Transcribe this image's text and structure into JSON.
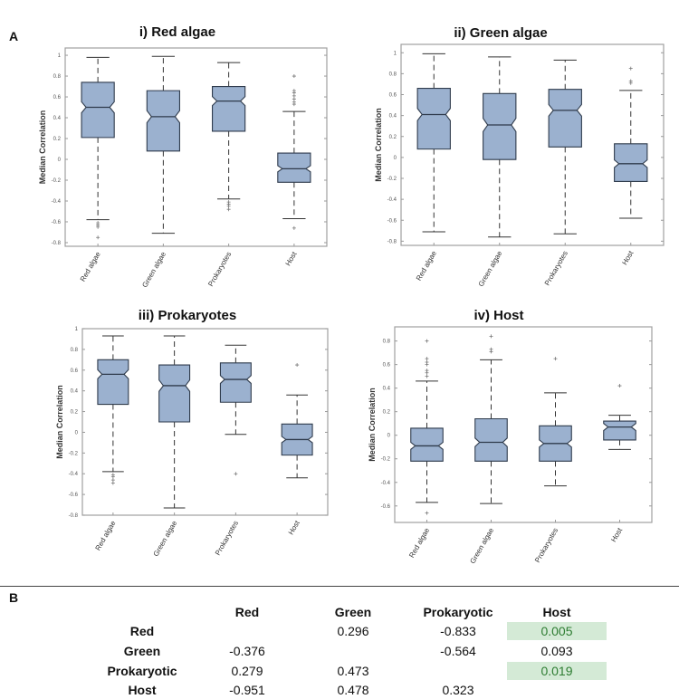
{
  "panel_labels": {
    "a": "A",
    "b": "B"
  },
  "chart_data": [
    {
      "type": "box",
      "title": "i) Red algae",
      "ylabel": "Median Correlation",
      "categories": [
        "Red algae",
        "Green algae",
        "Prokaryotes",
        "Host"
      ],
      "ylim": [
        -0.835,
        1.07
      ],
      "yticks": [
        1,
        0.8,
        0.6,
        0.4,
        0.2,
        0,
        -0.2,
        -0.4,
        -0.6,
        -0.8
      ],
      "boxes": [
        {
          "min": -0.58,
          "q1": 0.21,
          "median": 0.5,
          "q3": 0.74,
          "max": 0.98,
          "outliers": [
            -0.61,
            -0.63,
            -0.65,
            -0.75
          ]
        },
        {
          "min": -0.71,
          "q1": 0.08,
          "median": 0.41,
          "q3": 0.66,
          "max": 0.99,
          "outliers": []
        },
        {
          "min": -0.38,
          "q1": 0.27,
          "median": 0.56,
          "q3": 0.7,
          "max": 0.93,
          "outliers": [
            -0.41,
            -0.43,
            -0.45,
            -0.48
          ]
        },
        {
          "min": -0.57,
          "q1": -0.22,
          "median": -0.09,
          "q3": 0.06,
          "max": 0.46,
          "outliers": [
            0.53,
            0.55,
            0.58,
            0.61,
            0.64,
            0.66,
            0.8,
            -0.66
          ]
        }
      ],
      "grid": false
    },
    {
      "type": "box",
      "title": "ii) Green algae",
      "ylabel": "Median Correlation",
      "categories": [
        "Red algae",
        "Green algae",
        "Prokaryotes",
        "Host"
      ],
      "ylim": [
        -0.84,
        1.08
      ],
      "yticks": [
        1,
        0.8,
        0.6,
        0.4,
        0.2,
        0,
        -0.2,
        -0.4,
        -0.6,
        -0.8
      ],
      "boxes": [
        {
          "min": -0.71,
          "q1": 0.08,
          "median": 0.41,
          "q3": 0.66,
          "max": 0.99,
          "outliers": []
        },
        {
          "min": -0.76,
          "q1": -0.02,
          "median": 0.31,
          "q3": 0.61,
          "max": 0.96,
          "outliers": []
        },
        {
          "min": -0.73,
          "q1": 0.1,
          "median": 0.45,
          "q3": 0.65,
          "max": 0.93,
          "outliers": []
        },
        {
          "min": -0.58,
          "q1": -0.23,
          "median": -0.06,
          "q3": 0.13,
          "max": 0.64,
          "outliers": [
            0.71,
            0.73,
            0.85
          ]
        }
      ],
      "grid": false
    },
    {
      "type": "box",
      "title": "iii) Prokaryotes",
      "ylabel": "Median Correlation",
      "categories": [
        "Red algae",
        "Green algae",
        "Prokaryotes",
        "Host"
      ],
      "ylim": [
        -0.8,
        1.0
      ],
      "yticks": [
        1,
        0.8,
        0.6,
        0.4,
        0.2,
        0,
        -0.2,
        -0.4,
        -0.6,
        -0.8
      ],
      "boxes": [
        {
          "min": -0.38,
          "q1": 0.27,
          "median": 0.56,
          "q3": 0.7,
          "max": 0.93,
          "outliers": [
            -0.41,
            -0.43,
            -0.46,
            -0.49
          ]
        },
        {
          "min": -0.73,
          "q1": 0.1,
          "median": 0.45,
          "q3": 0.65,
          "max": 0.93,
          "outliers": []
        },
        {
          "min": -0.02,
          "q1": 0.29,
          "median": 0.51,
          "q3": 0.67,
          "max": 0.84,
          "outliers": [
            -0.4
          ]
        },
        {
          "min": -0.44,
          "q1": -0.22,
          "median": -0.07,
          "q3": 0.08,
          "max": 0.36,
          "outliers": [
            0.65
          ]
        }
      ],
      "grid": false
    },
    {
      "type": "box",
      "title": "iv) Host",
      "ylabel": "Median Correlation",
      "categories": [
        "Red algae",
        "Green algae",
        "Prokaryotes",
        "Host"
      ],
      "ylim": [
        -0.74,
        0.92
      ],
      "yticks": [
        0.8,
        0.6,
        0.4,
        0.2,
        0,
        -0.2,
        -0.4,
        -0.6
      ],
      "boxes": [
        {
          "min": -0.57,
          "q1": -0.22,
          "median": -0.09,
          "q3": 0.06,
          "max": 0.46,
          "outliers": [
            0.5,
            0.53,
            0.55,
            0.6,
            0.62,
            0.65,
            0.8,
            -0.66
          ]
        },
        {
          "min": -0.58,
          "q1": -0.22,
          "median": -0.06,
          "q3": 0.14,
          "max": 0.64,
          "outliers": [
            0.71,
            0.73,
            0.84
          ]
        },
        {
          "min": -0.43,
          "q1": -0.22,
          "median": -0.07,
          "q3": 0.08,
          "max": 0.36,
          "outliers": [
            0.65
          ]
        },
        {
          "min": -0.12,
          "q1": -0.04,
          "median": 0.07,
          "q3": 0.12,
          "max": 0.17,
          "outliers": [
            0.42
          ]
        }
      ],
      "grid": false
    }
  ],
  "colors": {
    "box_fill": "#9bb1cf",
    "box_stroke": "#2f3b4c",
    "highlight": "#d4ead6",
    "highlight_text": "#2e7d32"
  },
  "table": {
    "columns": [
      "Red",
      "Green",
      "Prokaryotic",
      "Host"
    ],
    "rows": [
      {
        "label": "Red",
        "cells": [
          "",
          "0.296",
          "-0.833",
          "0.005"
        ]
      },
      {
        "label": "Green",
        "cells": [
          "-0.376",
          "",
          "-0.564",
          "0.093"
        ]
      },
      {
        "label": "Prokaryotic",
        "cells": [
          "0.279",
          "0.473",
          "",
          "0.019"
        ]
      },
      {
        "label": "Host",
        "cells": [
          "-0.951",
          "0.478",
          "0.323",
          ""
        ]
      }
    ],
    "highlighted": [
      "0.005",
      "0.019"
    ]
  }
}
